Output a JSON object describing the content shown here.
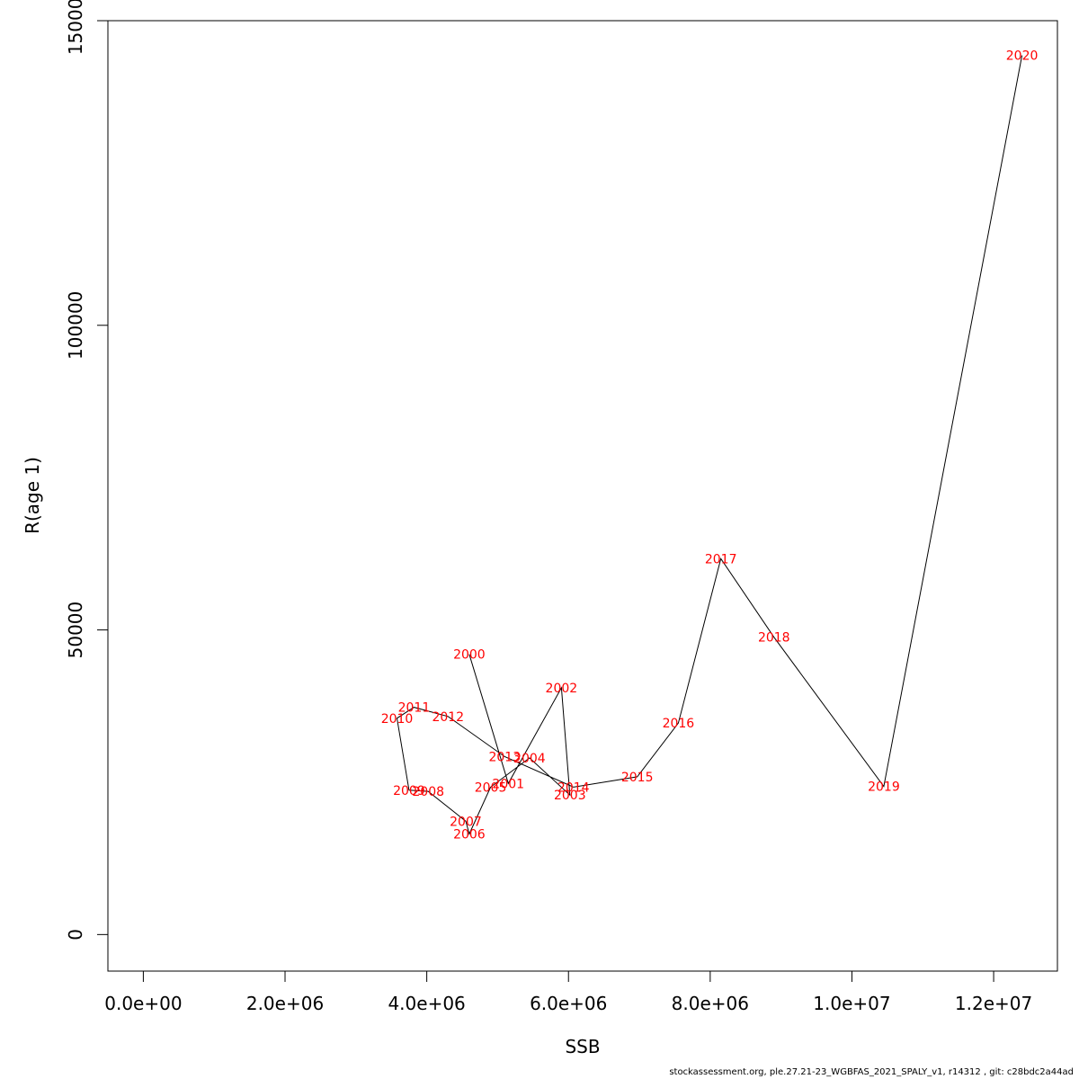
{
  "chart_data": {
    "type": "line",
    "xlabel": "SSB",
    "ylabel": "R(age 1)",
    "xlim": [
      -500000,
      12900000
    ],
    "ylim": [
      -6000,
      150000
    ],
    "x_ticks": [
      0,
      2000000,
      4000000,
      6000000,
      8000000,
      10000000,
      12000000
    ],
    "x_tick_labels": [
      "0.0e+00",
      "2.0e+06",
      "4.0e+06",
      "6.0e+06",
      "8.0e+06",
      "1.0e+07",
      "1.2e+07"
    ],
    "y_ticks": [
      0,
      50000,
      100000,
      150000
    ],
    "y_tick_labels": [
      "0",
      "50000",
      "100000",
      "150000"
    ],
    "grid": false,
    "line_color": "#000000",
    "label_color": "#ff0000",
    "points": [
      {
        "year": "2000",
        "ssb": 4600000,
        "r": 46000
      },
      {
        "year": "2001",
        "ssb": 5150000,
        "r": 24800
      },
      {
        "year": "2002",
        "ssb": 5900000,
        "r": 40500
      },
      {
        "year": "2003",
        "ssb": 6020000,
        "r": 22900
      },
      {
        "year": "2004",
        "ssb": 5450000,
        "r": 29000
      },
      {
        "year": "2005",
        "ssb": 4900000,
        "r": 24200
      },
      {
        "year": "2006",
        "ssb": 4600000,
        "r": 16500
      },
      {
        "year": "2007",
        "ssb": 4550000,
        "r": 18600
      },
      {
        "year": "2008",
        "ssb": 4020000,
        "r": 23500
      },
      {
        "year": "2009",
        "ssb": 3750000,
        "r": 23700
      },
      {
        "year": "2010",
        "ssb": 3580000,
        "r": 35500
      },
      {
        "year": "2011",
        "ssb": 3820000,
        "r": 37300
      },
      {
        "year": "2012",
        "ssb": 4300000,
        "r": 35800
      },
      {
        "year": "2013",
        "ssb": 5100000,
        "r": 29200
      },
      {
        "year": "2014",
        "ssb": 6070000,
        "r": 24200
      },
      {
        "year": "2015",
        "ssb": 6970000,
        "r": 25900
      },
      {
        "year": "2016",
        "ssb": 7550000,
        "r": 34700
      },
      {
        "year": "2017",
        "ssb": 8150000,
        "r": 61700
      },
      {
        "year": "2018",
        "ssb": 8900000,
        "r": 48800
      },
      {
        "year": "2019",
        "ssb": 10450000,
        "r": 24300
      },
      {
        "year": "2020",
        "ssb": 12400000,
        "r": 144300
      }
    ]
  },
  "footer": {
    "text": "stockassessment.org, ple.27.21-23_WGBFAS_2021_SPALY_v1, r14312 , git: c28bdc2a44ad"
  }
}
